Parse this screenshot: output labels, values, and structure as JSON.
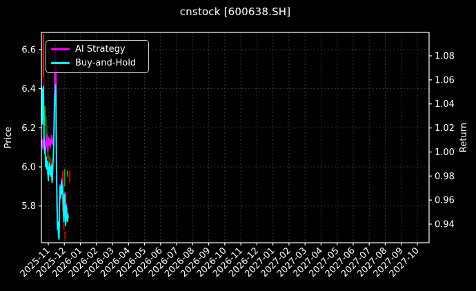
{
  "window": {
    "title": "cnstock [600638.SH]"
  },
  "chart_data": {
    "type": "line",
    "title": "cnstock [600638.SH]",
    "xlabel": "",
    "ylabel": "Price",
    "y2label": "Return",
    "background_color": "#000000",
    "text_color": "#ffffff",
    "grid": true,
    "grid_color": "#3a3a3a",
    "ylim": [
      5.612,
      6.688
    ],
    "y2lim": [
      0.9245,
      1.0995
    ],
    "y_ticks": [
      {
        "label": "6.6",
        "value": 6.6
      },
      {
        "label": "6.4",
        "value": 6.4
      },
      {
        "label": "6.2",
        "value": 6.2
      },
      {
        "label": "6.0",
        "value": 6.0
      },
      {
        "label": "5.8",
        "value": 5.8
      }
    ],
    "y2_ticks": [
      {
        "label": "1.08",
        "value": 1.08
      },
      {
        "label": "1.06",
        "value": 1.06
      },
      {
        "label": "1.04",
        "value": 1.04
      },
      {
        "label": "1.02",
        "value": 1.02
      },
      {
        "label": "1.00",
        "value": 1.0
      },
      {
        "label": "0.98",
        "value": 0.98
      },
      {
        "label": "0.96",
        "value": 0.96
      },
      {
        "label": "0.94",
        "value": 0.94
      }
    ],
    "x_tick_labels": [
      "2025-11",
      "2025-12",
      "2026-01",
      "2026-02",
      "2026-03",
      "2026-04",
      "2026-05",
      "2026-06",
      "2026-07",
      "2026-08",
      "2026-09",
      "2026-10",
      "2026-11",
      "2026-12",
      "2027-01",
      "2027-02",
      "2027-03",
      "2027-04",
      "2027-05",
      "2027-06",
      "2027-07",
      "2027-08",
      "2027-09",
      "2027-10"
    ],
    "legend": {
      "position": "upper-left",
      "entries": [
        {
          "label": "AI Strategy",
          "color": "#ff00ff"
        },
        {
          "label": "Buy-and-Hold",
          "color": "#00ffff"
        }
      ]
    },
    "series": [
      {
        "name": "AI Strategy",
        "color": "#ff00ff",
        "points": [
          [
            0,
            6.13
          ],
          [
            1,
            6.1
          ],
          [
            2,
            6.14
          ],
          [
            3,
            6.09
          ],
          [
            4,
            6.12
          ],
          [
            5,
            6.15
          ],
          [
            6,
            6.1
          ],
          [
            7,
            6.13
          ],
          [
            8,
            6.09
          ],
          [
            9,
            6.12
          ],
          [
            10,
            6.16
          ],
          [
            11,
            6.11
          ],
          [
            12,
            6.08
          ],
          [
            13,
            6.12
          ],
          [
            14,
            6.15
          ],
          [
            15,
            6.11
          ],
          [
            16,
            6.14
          ],
          [
            17,
            6.1
          ],
          [
            18,
            6.13
          ],
          [
            19,
            6.16
          ],
          [
            20,
            6.12
          ],
          [
            21,
            6.14
          ],
          [
            22,
            6.11
          ],
          [
            23,
            6.17
          ],
          [
            24,
            6.3
          ],
          [
            25,
            6.48
          ],
          [
            26,
            6.63
          ],
          [
            27,
            6.56
          ],
          [
            28,
            6.2
          ],
          [
            29,
            5.92
          ],
          [
            30,
            5.73
          ],
          [
            31,
            5.7
          ],
          [
            32,
            5.66
          ],
          [
            33,
            5.64
          ],
          [
            34,
            5.82
          ],
          [
            35,
            5.91
          ],
          [
            36,
            5.85
          ],
          [
            37,
            5.89
          ],
          [
            38,
            5.94
          ],
          [
            39,
            5.87
          ],
          [
            40,
            5.91
          ],
          [
            41,
            5.79
          ],
          [
            42,
            5.73
          ],
          [
            43,
            5.86
          ],
          [
            44,
            5.87
          ],
          [
            45,
            5.71
          ],
          [
            46,
            5.73
          ],
          [
            47,
            5.81
          ],
          [
            48,
            5.75
          ],
          [
            49,
            5.73
          ],
          [
            50,
            5.76
          ]
        ]
      },
      {
        "name": "Buy-and-Hold",
        "color": "#00ffff",
        "points": [
          [
            0,
            6.41
          ],
          [
            1,
            6.39
          ],
          [
            2,
            6.22
          ],
          [
            3,
            6.4
          ],
          [
            4,
            6.41
          ],
          [
            5,
            6.15
          ],
          [
            6,
            6.07
          ],
          [
            7,
            6.1
          ],
          [
            8,
            6.0
          ],
          [
            9,
            6.05
          ],
          [
            10,
            5.99
          ],
          [
            11,
            6.03
          ],
          [
            12,
            5.97
          ],
          [
            13,
            5.93
          ],
          [
            14,
            5.99
          ],
          [
            15,
            6.02
          ],
          [
            16,
            5.96
          ],
          [
            17,
            6.0
          ],
          [
            18,
            5.95
          ],
          [
            19,
            6.01
          ],
          [
            20,
            5.92
          ],
          [
            21,
            5.97
          ],
          [
            22,
            6.03
          ],
          [
            23,
            6.1
          ],
          [
            24,
            6.22
          ],
          [
            25,
            6.35
          ],
          [
            26,
            6.38
          ],
          [
            27,
            6.42
          ],
          [
            28,
            6.05
          ],
          [
            29,
            5.82
          ],
          [
            30,
            5.68
          ],
          [
            31,
            5.72
          ],
          [
            32,
            5.64
          ],
          [
            33,
            5.63
          ],
          [
            34,
            5.8
          ],
          [
            35,
            5.9
          ],
          [
            36,
            5.84
          ],
          [
            37,
            5.88
          ],
          [
            38,
            5.93
          ],
          [
            39,
            5.86
          ],
          [
            40,
            5.9
          ],
          [
            41,
            5.78
          ],
          [
            42,
            5.72
          ],
          [
            43,
            5.85
          ],
          [
            44,
            5.86
          ],
          [
            45,
            5.7
          ],
          [
            46,
            5.72
          ],
          [
            47,
            5.8
          ],
          [
            48,
            5.74
          ],
          [
            49,
            5.72
          ],
          [
            50,
            5.75
          ]
        ]
      }
    ],
    "candles": [
      {
        "t": 4,
        "hi": 6.68,
        "lo": 6.46,
        "color": "#ff1212"
      },
      {
        "t": 4.6,
        "hi": 6.46,
        "lo": 6.37,
        "color": "#7d0000"
      },
      {
        "t": 7,
        "hi": 6.31,
        "lo": 6.21,
        "color": "#1e9e1e"
      },
      {
        "t": 8.5,
        "hi": 6.26,
        "lo": 6.12,
        "color": "#157c15"
      },
      {
        "t": 10,
        "hi": 6.21,
        "lo": 6.1,
        "color": "#10650f"
      },
      {
        "t": 11.5,
        "hi": 6.17,
        "lo": 6.04,
        "color": "#6b3b08"
      },
      {
        "t": 13,
        "hi": 6.09,
        "lo": 5.96,
        "color": "#7d0000"
      },
      {
        "t": 14.5,
        "hi": 6.06,
        "lo": 5.97,
        "color": "#10650f"
      },
      {
        "t": 16,
        "hi": 6.05,
        "lo": 5.96,
        "color": "#6b3b08"
      },
      {
        "t": 17.5,
        "hi": 6.03,
        "lo": 5.95,
        "color": "#7d0000"
      },
      {
        "t": 19,
        "hi": 6.04,
        "lo": 5.93,
        "color": "#c00000"
      },
      {
        "t": 21,
        "hi": 6.0,
        "lo": 5.92,
        "color": "#10650f"
      },
      {
        "t": 40,
        "hi": 5.98,
        "lo": 5.77,
        "color": "#d40000"
      },
      {
        "t": 42,
        "hi": 5.78,
        "lo": 5.68,
        "color": "#b00000"
      },
      {
        "t": 43.5,
        "hi": 5.99,
        "lo": 5.9,
        "color": "#1e9e1e"
      },
      {
        "t": 44.5,
        "hi": 5.67,
        "lo": 5.63,
        "color": "#c00000"
      },
      {
        "t": 46,
        "hi": 5.86,
        "lo": 5.72,
        "color": "#7d0000"
      },
      {
        "t": 49,
        "hi": 5.98,
        "lo": 5.95,
        "color": "#1e9e1e"
      },
      {
        "t": 53,
        "hi": 5.98,
        "lo": 5.92,
        "color": "#c00000"
      }
    ]
  }
}
